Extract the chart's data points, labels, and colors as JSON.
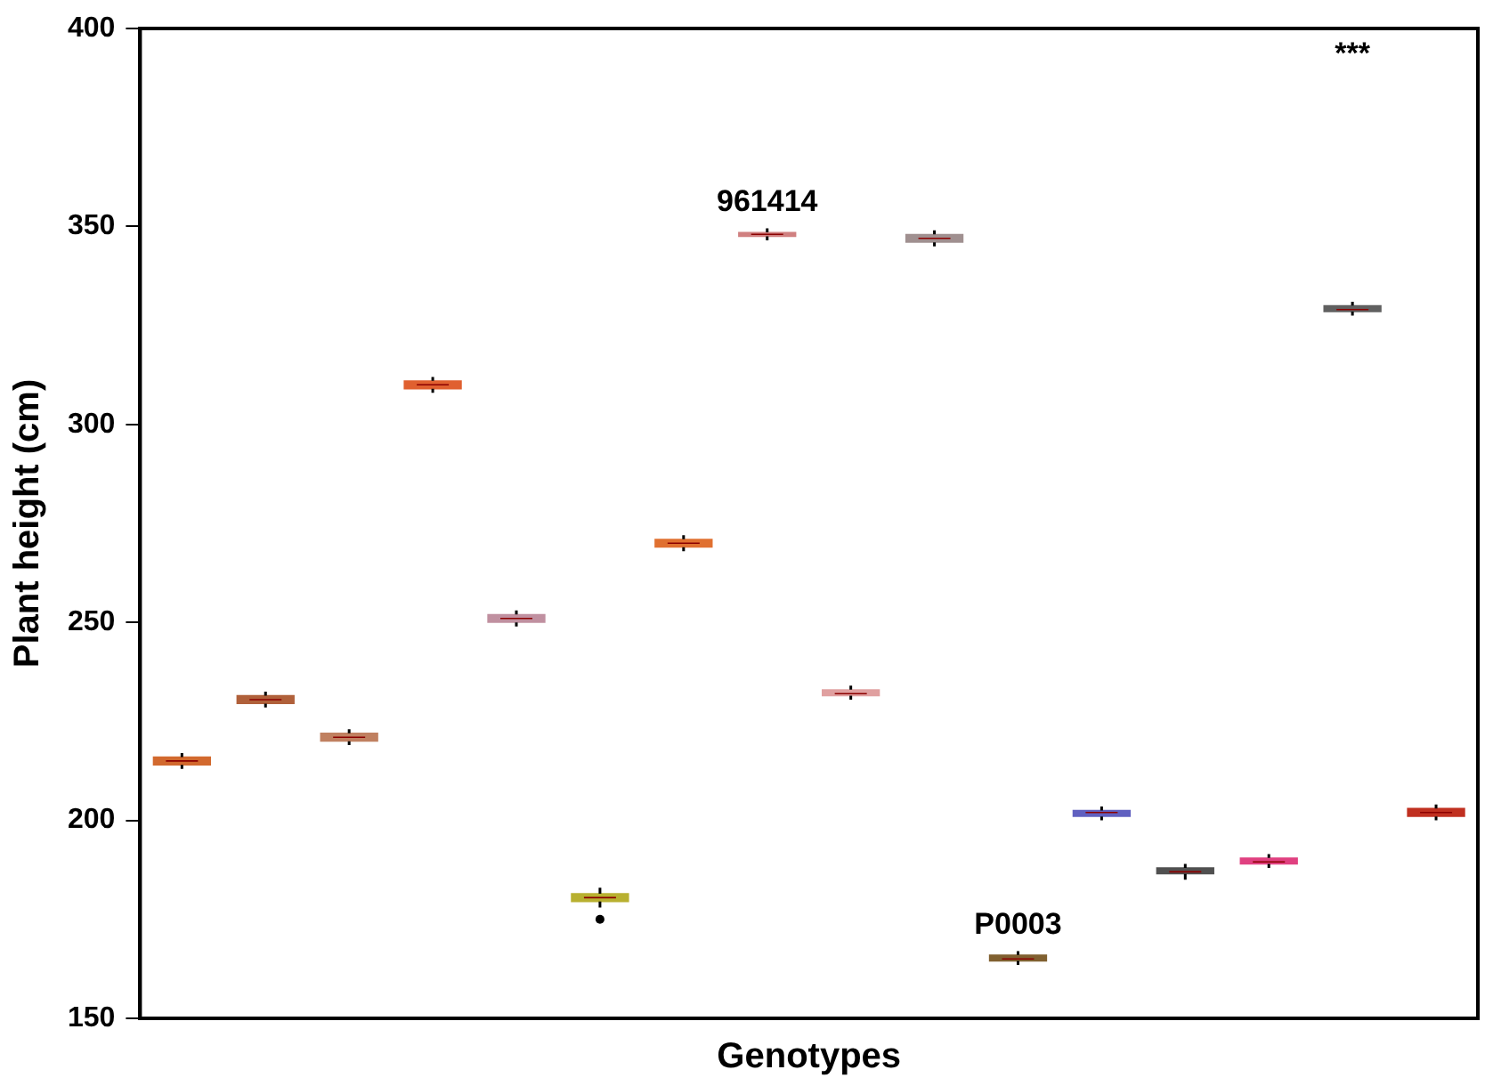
{
  "chart_data": {
    "type": "box",
    "xlabel": "Genotypes",
    "ylabel": "Plant height (cm)",
    "categories": [
      null,
      null,
      null,
      null,
      null,
      null,
      null,
      null,
      null,
      null,
      null,
      null,
      null,
      null,
      null,
      null
    ],
    "colors": [
      "#d2692e",
      "#b0603a",
      "#c08060",
      "#e06030",
      "#c090a0",
      "#b8b030",
      "#e07030",
      "#d08080",
      "#e0a0a0",
      "#a09090",
      "#806030",
      "#6060c0",
      "#505050",
      "#e04080",
      "#606060",
      "#c03020"
    ],
    "boxes": [
      {
        "low": 213,
        "q1": 214,
        "median": 215,
        "q3": 216,
        "high": 217
      },
      {
        "low": 228.5,
        "q1": 229.5,
        "median": 230.5,
        "q3": 231.5,
        "high": 232.5
      },
      {
        "low": 219,
        "q1": 220,
        "median": 221,
        "q3": 222,
        "high": 223
      },
      {
        "low": 308,
        "q1": 309,
        "median": 310,
        "q3": 311,
        "high": 312
      },
      {
        "low": 249,
        "q1": 250,
        "median": 251,
        "q3": 252,
        "high": 253
      },
      {
        "low": 178,
        "q1": 179.5,
        "median": 180.5,
        "q3": 181.5,
        "high": 183,
        "outliers": [
          175
        ]
      },
      {
        "low": 268,
        "q1": 269,
        "median": 270,
        "q3": 271,
        "high": 272
      },
      {
        "low": 346.5,
        "q1": 347.5,
        "median": 348,
        "q3": 348.5,
        "high": 349.5
      },
      {
        "low": 230.5,
        "q1": 231.5,
        "median": 232,
        "q3": 233,
        "high": 234
      },
      {
        "low": 345,
        "q1": 346,
        "median": 347,
        "q3": 348,
        "high": 349
      },
      {
        "low": 163.5,
        "q1": 164.5,
        "median": 165,
        "q3": 166,
        "high": 167
      },
      {
        "low": 200,
        "q1": 201,
        "median": 202,
        "q3": 202.5,
        "high": 203.5
      },
      {
        "low": 185,
        "q1": 186.5,
        "median": 187,
        "q3": 188,
        "high": 189
      },
      {
        "low": 188,
        "q1": 189,
        "median": 189.5,
        "q3": 190.5,
        "high": 191.5
      },
      {
        "low": 327.5,
        "q1": 328.5,
        "median": 329,
        "q3": 330,
        "high": 331
      },
      {
        "low": 200,
        "q1": 201,
        "median": 202,
        "q3": 203,
        "high": 204
      }
    ],
    "annotations": [
      "961414",
      "P0003",
      "***"
    ],
    "ylim": [
      150,
      400
    ],
    "yticks": [
      150,
      200,
      250,
      300,
      350,
      400
    ],
    "grid": false,
    "legend": false
  }
}
